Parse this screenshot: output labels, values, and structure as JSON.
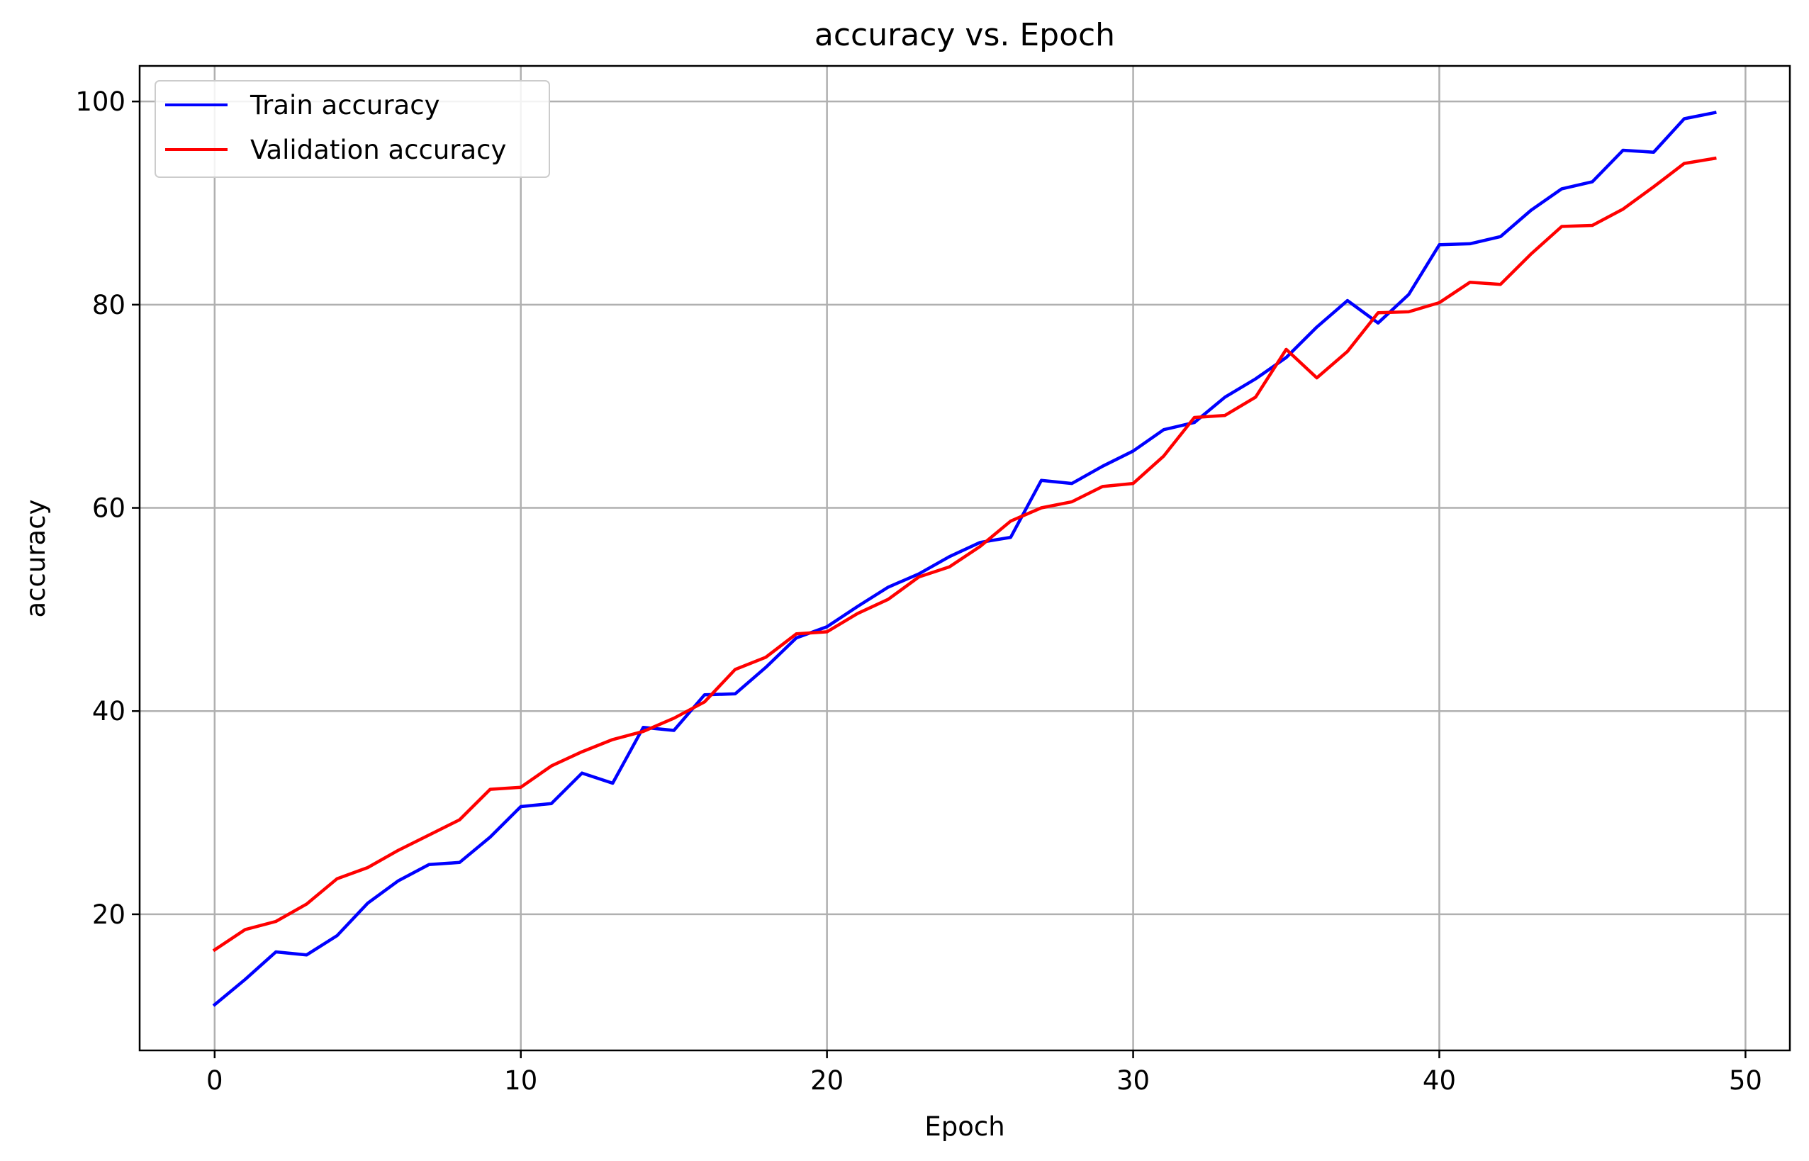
{
  "chart_data": {
    "type": "line",
    "title": "accuracy vs. Epoch",
    "xlabel": "Epoch",
    "ylabel": "accuracy",
    "xlim": [
      -2.45,
      51.45
    ],
    "ylim": [
      6.6,
      103.5
    ],
    "xticks": [
      0,
      10,
      20,
      30,
      40,
      50
    ],
    "yticks": [
      20,
      40,
      60,
      80,
      100
    ],
    "xtick_labels": [
      "0",
      "10",
      "20",
      "30",
      "40",
      "50"
    ],
    "ytick_labels": [
      "20",
      "40",
      "60",
      "80",
      "100"
    ],
    "grid": true,
    "legend_position": "upper-left",
    "x": [
      0,
      1,
      2,
      3,
      4,
      5,
      6,
      7,
      8,
      9,
      10,
      11,
      12,
      13,
      14,
      15,
      16,
      17,
      18,
      19,
      20,
      21,
      22,
      23,
      24,
      25,
      26,
      27,
      28,
      29,
      30,
      31,
      32,
      33,
      34,
      35,
      36,
      37,
      38,
      39,
      40,
      41,
      42,
      43,
      44,
      45,
      46,
      47,
      48,
      49
    ],
    "series": [
      {
        "name": "Train accuracy",
        "color": "#0000ff",
        "values": [
          11.1,
          13.6,
          16.3,
          16.0,
          17.9,
          21.1,
          23.3,
          24.9,
          25.1,
          27.6,
          30.6,
          30.9,
          33.9,
          32.9,
          38.4,
          38.1,
          41.6,
          41.7,
          44.3,
          47.2,
          48.3,
          50.3,
          52.2,
          53.5,
          55.2,
          56.6,
          57.1,
          62.7,
          62.4,
          64.1,
          65.6,
          67.7,
          68.4,
          70.9,
          72.7,
          74.8,
          77.8,
          80.4,
          78.2,
          81.0,
          85.9,
          86.0,
          86.7,
          89.3,
          91.4,
          92.1,
          95.2,
          95.0,
          98.3,
          98.9
        ]
      },
      {
        "name": "Validation accuracy",
        "color": "#ff0000",
        "values": [
          16.5,
          18.5,
          19.3,
          21.0,
          23.5,
          24.6,
          26.3,
          27.8,
          29.3,
          32.3,
          32.5,
          34.6,
          36.0,
          37.2,
          38.0,
          39.3,
          40.9,
          44.1,
          45.3,
          47.6,
          47.8,
          49.6,
          51.0,
          53.2,
          54.2,
          56.2,
          58.7,
          60.0,
          60.6,
          62.1,
          62.4,
          65.1,
          68.9,
          69.1,
          70.9,
          75.6,
          72.8,
          75.4,
          79.2,
          79.3,
          80.2,
          82.2,
          82.0,
          85.0,
          87.7,
          87.8,
          89.4,
          91.6,
          93.9,
          94.4
        ]
      }
    ]
  }
}
